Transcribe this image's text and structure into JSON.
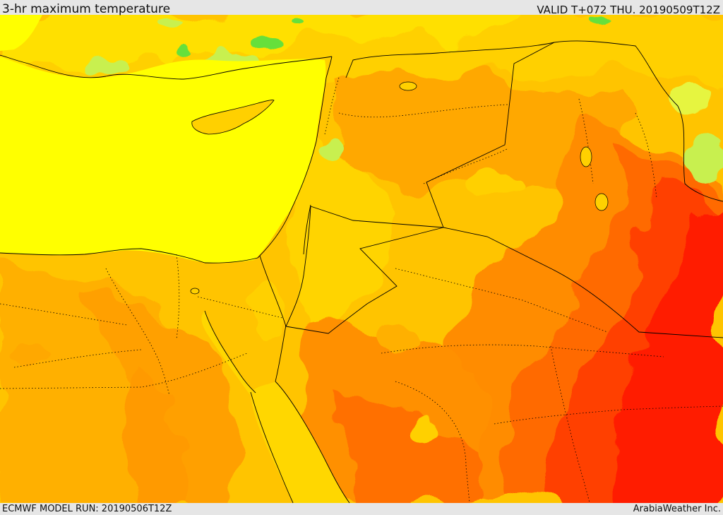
{
  "header": {
    "title": "3-hr maximum temperature",
    "valid": "VALID T+072 THU. 20190509T12Z"
  },
  "footer": {
    "model_run": "ECMWF MODEL RUN: 20190506T12Z",
    "credit": "ArabiaWeather Inc."
  },
  "colors": {
    "sea": "#ffff00",
    "light_green": "#c8f050",
    "green": "#66e03a",
    "yellow_land": "#ffd700",
    "gold": "#ffc400",
    "orange_light": "#ffa800",
    "orange": "#ff8c00",
    "orange_dark": "#ff6a00",
    "red_orange": "#ff4000",
    "red": "#ff1a00",
    "border": "#000000"
  }
}
